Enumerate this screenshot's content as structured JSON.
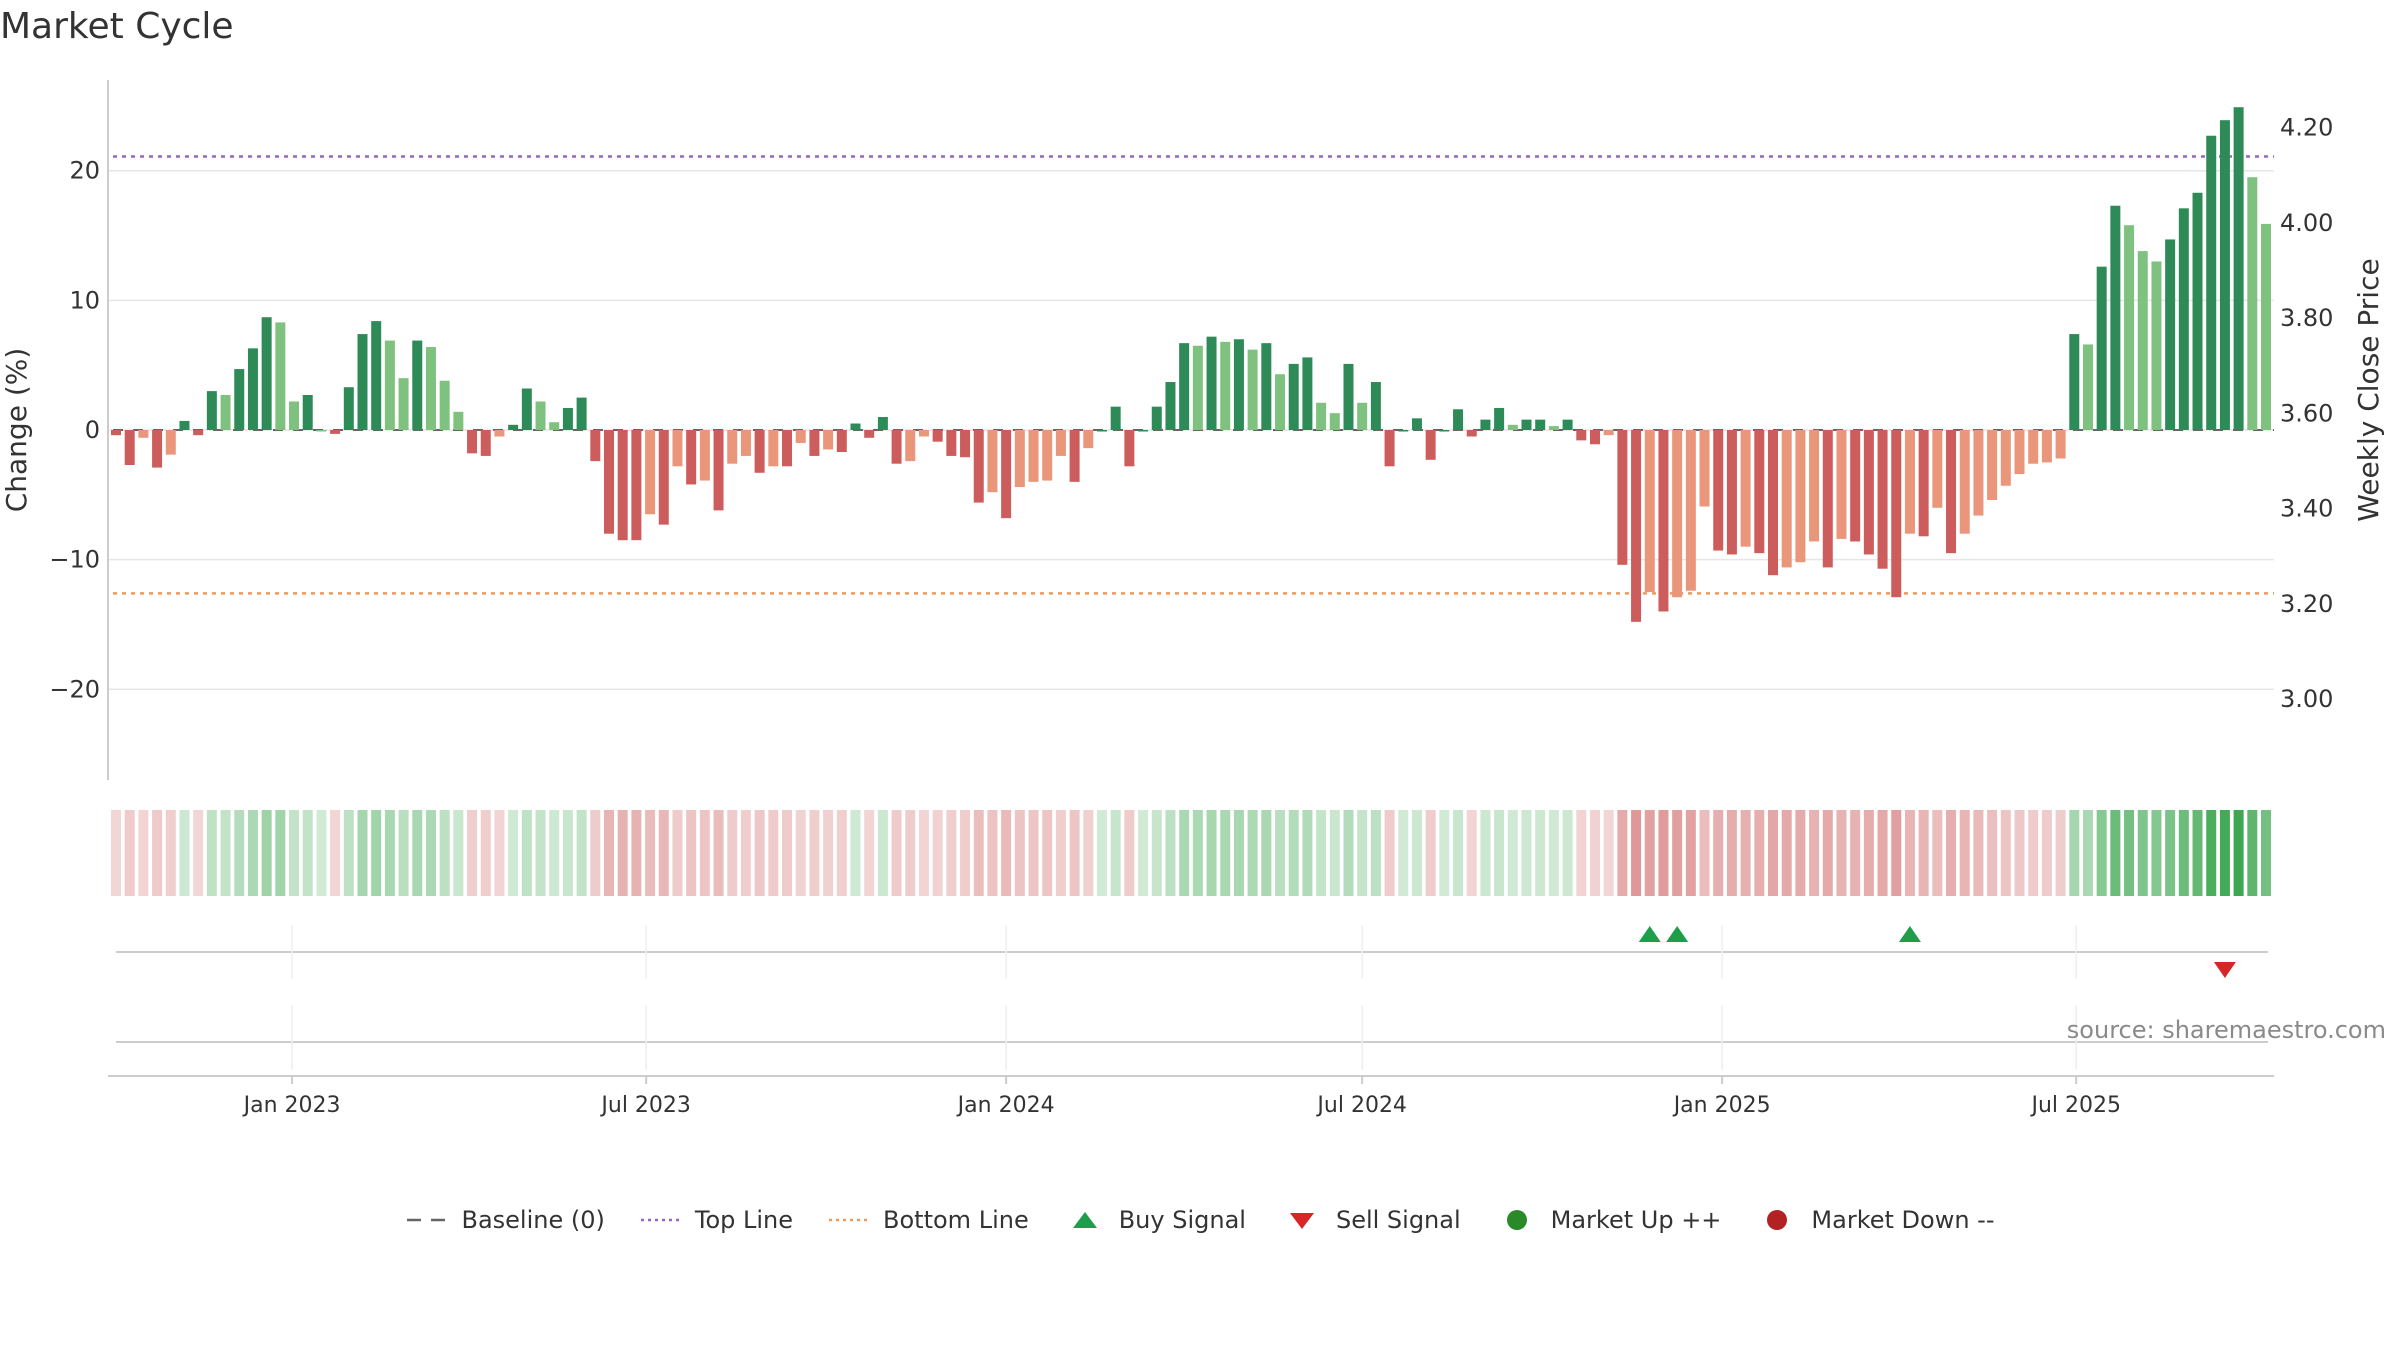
{
  "title": "Market Cycle",
  "source": "source: sharemaestro.com",
  "chart_data": {
    "type": "bar",
    "title": "Market Cycle",
    "ylabel": "Change (%)",
    "y2label": "Weekly Close Price",
    "ylim": [
      -27,
      27
    ],
    "y2lim": [
      2.83,
      4.3
    ],
    "yticks": [
      -20,
      -10,
      0,
      10,
      20
    ],
    "y2ticks": [
      3.0,
      3.2,
      3.4,
      3.6,
      3.8,
      4.0,
      4.2
    ],
    "y2tick_labels": [
      "3.00",
      "3.20",
      "3.40",
      "3.60",
      "3.80",
      "4.00",
      "4.20"
    ],
    "top_line": 21.1,
    "bottom_line": -12.6,
    "start_date": "2022-10-03",
    "week_step_days": 7,
    "xticks": [
      {
        "date": "2023-01-01",
        "label": "Jan 2023"
      },
      {
        "date": "2023-07-01",
        "label": "Jul 2023"
      },
      {
        "date": "2024-01-01",
        "label": "Jan 2024"
      },
      {
        "date": "2024-07-01",
        "label": "Jul 2024"
      },
      {
        "date": "2025-01-01",
        "label": "Jan 2025"
      },
      {
        "date": "2025-07-01",
        "label": "Jul 2025"
      }
    ],
    "values": [
      -0.4,
      -2.7,
      -0.6,
      -2.9,
      -1.9,
      0.7,
      -0.4,
      3.0,
      2.7,
      4.7,
      6.3,
      8.7,
      8.3,
      2.2,
      2.7,
      0.0,
      -0.3,
      3.3,
      7.4,
      8.4,
      6.9,
      4.0,
      6.9,
      6.4,
      3.8,
      1.4,
      -1.8,
      -2.0,
      -0.5,
      0.4,
      3.2,
      2.2,
      0.6,
      1.7,
      2.5,
      -2.4,
      -8.0,
      -8.5,
      -8.5,
      -6.5,
      -7.3,
      -2.8,
      -4.2,
      -3.9,
      -6.2,
      -2.6,
      -2.0,
      -3.3,
      -2.8,
      -2.8,
      -1.0,
      -2.0,
      -1.5,
      -1.7,
      0.5,
      -0.6,
      1.0,
      -2.6,
      -2.4,
      -0.5,
      -0.9,
      -2.0,
      -2.1,
      -5.6,
      -4.8,
      -6.8,
      -4.4,
      -4.0,
      -3.9,
      -2.0,
      -4.0,
      -1.4,
      0.0,
      1.8,
      -2.8,
      0.0,
      1.8,
      3.7,
      6.7,
      6.5,
      7.2,
      6.8,
      7.0,
      6.2,
      6.7,
      4.3,
      5.1,
      5.6,
      2.1,
      1.3,
      5.1,
      2.1,
      3.7,
      -2.8,
      0.0,
      0.9,
      -2.3,
      0.0,
      1.6,
      -0.5,
      0.8,
      1.7,
      0.4,
      0.8,
      0.8,
      0.3,
      0.8,
      -0.8,
      -1.1,
      -0.4,
      -10.4,
      -14.8,
      -12.5,
      -14.0,
      -12.9,
      -12.4,
      -5.9,
      -9.3,
      -9.6,
      -9.0,
      -9.5,
      -11.2,
      -10.6,
      -10.2,
      -8.6,
      -10.6,
      -8.4,
      -8.6,
      -9.6,
      -10.7,
      -12.9,
      -8.0,
      -8.2,
      -6.0,
      -9.5,
      -8.0,
      -6.6,
      -5.4,
      -4.3,
      -3.4,
      -2.6,
      -2.5,
      -2.2,
      7.4,
      6.6,
      12.6,
      17.3,
      15.8,
      13.8,
      13.0,
      14.7,
      17.1,
      18.3,
      22.7,
      23.9,
      24.9,
      19.5,
      15.9
    ],
    "band_strength": "derived from values",
    "buy_signals": [
      112,
      114,
      131
    ],
    "sell_signals": [
      154
    ],
    "legend": [
      {
        "name": "Baseline (0)",
        "symbol": "dash",
        "color": "#666666"
      },
      {
        "name": "Top Line",
        "symbol": "dot-line",
        "color": "#9467bd"
      },
      {
        "name": "Bottom Line",
        "symbol": "dot-line",
        "color": "#ee9a5d"
      },
      {
        "name": "Buy Signal",
        "symbol": "triangle-up",
        "color": "#1e9e4a"
      },
      {
        "name": "Sell Signal",
        "symbol": "triangle-down",
        "color": "#d62728"
      },
      {
        "name": "Market Up ++",
        "symbol": "circle",
        "color": "#2a8a2a"
      },
      {
        "name": "Market Down --",
        "symbol": "circle",
        "color": "#b22222"
      }
    ],
    "colors": {
      "up_strong": "#2e8b57",
      "up_light": "#7fc27f",
      "down_strong": "#cd5c5c",
      "down_light": "#e9967a",
      "grid": "#e6e6e6",
      "axis": "#cccccc"
    }
  }
}
